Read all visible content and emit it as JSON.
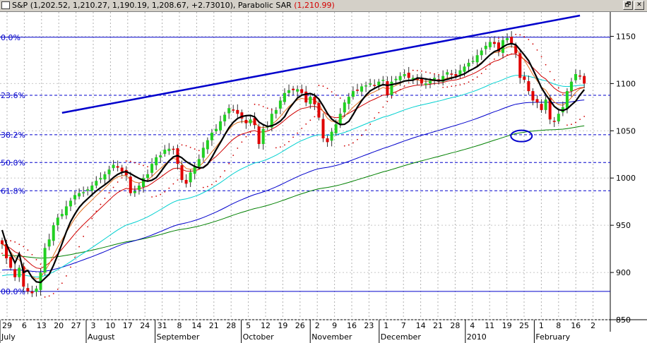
{
  "window": {
    "title": "S&P (1,202.52, 1,210.27, 1,190.19, 1,208.67, +2.73010),  Parabolic SAR",
    "sar_value": "(1,210.99)",
    "restore_glyph": "🗗",
    "close_glyph": "✕"
  },
  "chart_data": {
    "type": "candlestick",
    "title": "S&P (1,202.52, 1,210.27, 1,190.19, 1,208.67, +2.73010)",
    "indicator": "Parabolic SAR",
    "indicator_value": "(1,210.99)",
    "ylim": [
      850,
      1175
    ],
    "y_ticks": [
      850,
      900,
      950,
      1000,
      1050,
      1100,
      1150
    ],
    "x_day_labels": [
      "29",
      "6",
      "13",
      "20",
      "27",
      "3",
      "10",
      "17",
      "24",
      "31",
      "8",
      "14",
      "21",
      "28",
      "5",
      "12",
      "19",
      "26",
      "2",
      "9",
      "16",
      "23",
      "1",
      "7",
      "14",
      "21",
      "28",
      "4",
      "11",
      "19",
      "25",
      "1",
      "8",
      "16",
      "2"
    ],
    "month_labels": [
      "July",
      "August",
      "September",
      "October",
      "November",
      "December",
      "2010",
      "February"
    ],
    "fib_levels": [
      {
        "label": "0.0%",
        "value": 1149
      },
      {
        "label": "23.6%",
        "value": 1087.6
      },
      {
        "label": "38.2%",
        "value": 1045.8
      },
      {
        "label": "50.0%",
        "value": 1016.4
      },
      {
        "label": "61.8%",
        "value": 986.5
      },
      {
        "label": "00.0%",
        "value": 880
      }
    ],
    "trendline": {
      "from": [
        14,
        1069
      ],
      "to": [
        135,
        1172
      ]
    },
    "ellipse_marker": {
      "x": 121,
      "y": 1046
    },
    "closes": [
      930,
      915,
      905,
      895,
      905,
      885,
      880,
      878,
      883,
      900,
      926,
      935,
      950,
      958,
      962,
      970,
      976,
      982,
      984,
      985,
      988,
      992,
      997,
      1000,
      1004,
      1009,
      1014,
      1011,
      1007,
      1003,
      984,
      986,
      992,
      1000,
      1004,
      1015,
      1022,
      1024,
      1030,
      1031,
      1030,
      1015,
      998,
      994,
      1006,
      1012,
      1020,
      1032,
      1040,
      1048,
      1052,
      1060,
      1067,
      1074,
      1072,
      1068,
      1063,
      1058,
      1062,
      1056,
      1036,
      1052,
      1055,
      1068,
      1072,
      1082,
      1090,
      1093,
      1093,
      1094,
      1090,
      1080,
      1086,
      1078,
      1064,
      1042,
      1038,
      1049,
      1057,
      1068,
      1080,
      1086,
      1092,
      1093,
      1097,
      1098,
      1100,
      1098,
      1102,
      1104,
      1088,
      1102,
      1105,
      1108,
      1110,
      1106,
      1106,
      1104,
      1100,
      1100,
      1103,
      1106,
      1102,
      1108,
      1112,
      1110,
      1108,
      1114,
      1118,
      1122,
      1124,
      1130,
      1135,
      1140,
      1144,
      1142,
      1134,
      1146,
      1148,
      1142,
      1132,
      1106,
      1104,
      1092,
      1082,
      1080,
      1072,
      1083,
      1062,
      1060,
      1068,
      1075,
      1092,
      1102,
      1110,
      1108,
      1100
    ]
  }
}
